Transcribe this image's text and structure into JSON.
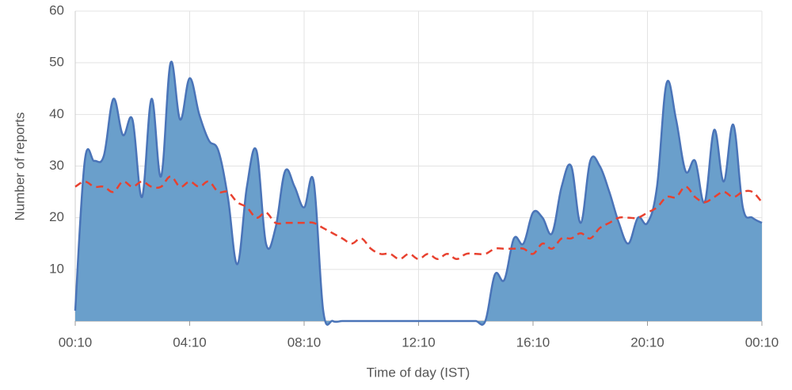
{
  "chart_data": {
    "type": "area",
    "x_label": "Time of day (IST)",
    "y_label": "Number of reports",
    "categories": [
      "00:10",
      null,
      null,
      null,
      null,
      null,
      null,
      null,
      null,
      null,
      null,
      null,
      "04:10",
      null,
      null,
      null,
      null,
      null,
      null,
      null,
      null,
      null,
      null,
      null,
      "08:10",
      null,
      null,
      null,
      null,
      null,
      null,
      null,
      null,
      null,
      null,
      null,
      "12:10",
      null,
      null,
      null,
      null,
      null,
      null,
      null,
      null,
      null,
      null,
      null,
      "16:10",
      null,
      null,
      null,
      null,
      null,
      null,
      null,
      null,
      null,
      null,
      null,
      "20:10",
      null,
      null,
      null,
      null,
      null,
      null,
      null,
      null,
      null,
      null,
      null,
      "00:10"
    ],
    "series": [
      {
        "type": "area",
        "color": "#4a74b8",
        "fill": "#6a9fcb",
        "values": [
          2,
          31,
          31,
          32,
          43,
          36,
          39,
          24,
          43,
          28,
          50,
          39,
          47,
          40,
          35,
          33,
          24,
          11,
          26,
          33,
          15,
          18,
          29,
          26,
          22,
          27,
          2,
          0,
          0,
          0,
          0,
          0,
          0,
          0,
          0,
          0,
          0,
          0,
          0,
          0,
          0,
          0,
          0,
          0,
          9,
          8,
          16,
          15,
          21,
          20,
          17,
          26,
          30,
          19,
          31,
          30,
          25,
          19,
          15,
          20,
          19,
          26,
          46,
          39,
          29,
          31,
          23,
          37,
          27,
          38,
          22,
          20,
          19
        ]
      },
      {
        "type": "dashed-line",
        "color": "#e8412f",
        "values": [
          26,
          27,
          26,
          26,
          25,
          27,
          26,
          27,
          26,
          26,
          28,
          26,
          27,
          26,
          27,
          25,
          25,
          23,
          22,
          20,
          21,
          19,
          19,
          19,
          19,
          19,
          18,
          17,
          16,
          15,
          16,
          14,
          13,
          13,
          12,
          13,
          12,
          13,
          12,
          13,
          12,
          13,
          13,
          13,
          14,
          14,
          14,
          14,
          13,
          15,
          14,
          16,
          16,
          17,
          16,
          18,
          19,
          20,
          20,
          20,
          21,
          22,
          24,
          24,
          26,
          24,
          23,
          24,
          25,
          24,
          25,
          25,
          23
        ]
      }
    ],
    "ylim": [
      0,
      60
    ],
    "yticks": [
      10,
      20,
      30,
      40,
      50,
      60
    ],
    "grid": true
  }
}
